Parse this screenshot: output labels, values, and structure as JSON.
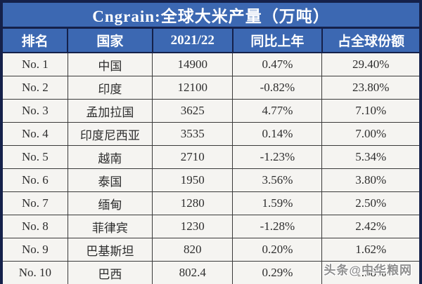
{
  "title": "Cngrain:全球大米产量（万吨）",
  "watermark": "头条@中华粮网",
  "colors": {
    "header_blue": "#3c68b2",
    "border_navy": "#15214a",
    "body_background": "#f5f4f1",
    "body_border": "#3a3a3a",
    "body_text": "#2d2d2d",
    "header_text": "#ffffff",
    "watermark_gray": "#8f8f8f"
  },
  "chart_data": {
    "type": "table",
    "title": "Cngrain:全球大米产量（万吨）",
    "columns": [
      "排名",
      "国家",
      "2021/22",
      "同比上年",
      "占全球份额"
    ],
    "rows": [
      [
        "No. 1",
        "中国",
        "14900",
        "0.47%",
        "29.40%"
      ],
      [
        "No. 2",
        "印度",
        "12100",
        "-0.82%",
        "23.80%"
      ],
      [
        "No. 3",
        "孟加拉国",
        "3625",
        "4.77%",
        "7.10%"
      ],
      [
        "No. 4",
        "印度尼西亚",
        "3535",
        "0.14%",
        "7.00%"
      ],
      [
        "No. 5",
        "越南",
        "2710",
        "-1.23%",
        "5.34%"
      ],
      [
        "No. 6",
        "泰国",
        "1950",
        "3.56%",
        "3.80%"
      ],
      [
        "No. 7",
        "缅甸",
        "1280",
        "1.59%",
        "2.50%"
      ],
      [
        "No. 8",
        "菲律宾",
        "1230",
        "-1.28%",
        "2.42%"
      ],
      [
        "No. 9",
        "巴基斯坦",
        "820",
        "0.20%",
        "1.62%"
      ],
      [
        "No. 10",
        "巴西",
        "802.4",
        "0.29%",
        "1.58%"
      ]
    ],
    "units": "万吨",
    "value_columns_note": "production in 10k tonnes, YoY change %, share of global output %"
  }
}
